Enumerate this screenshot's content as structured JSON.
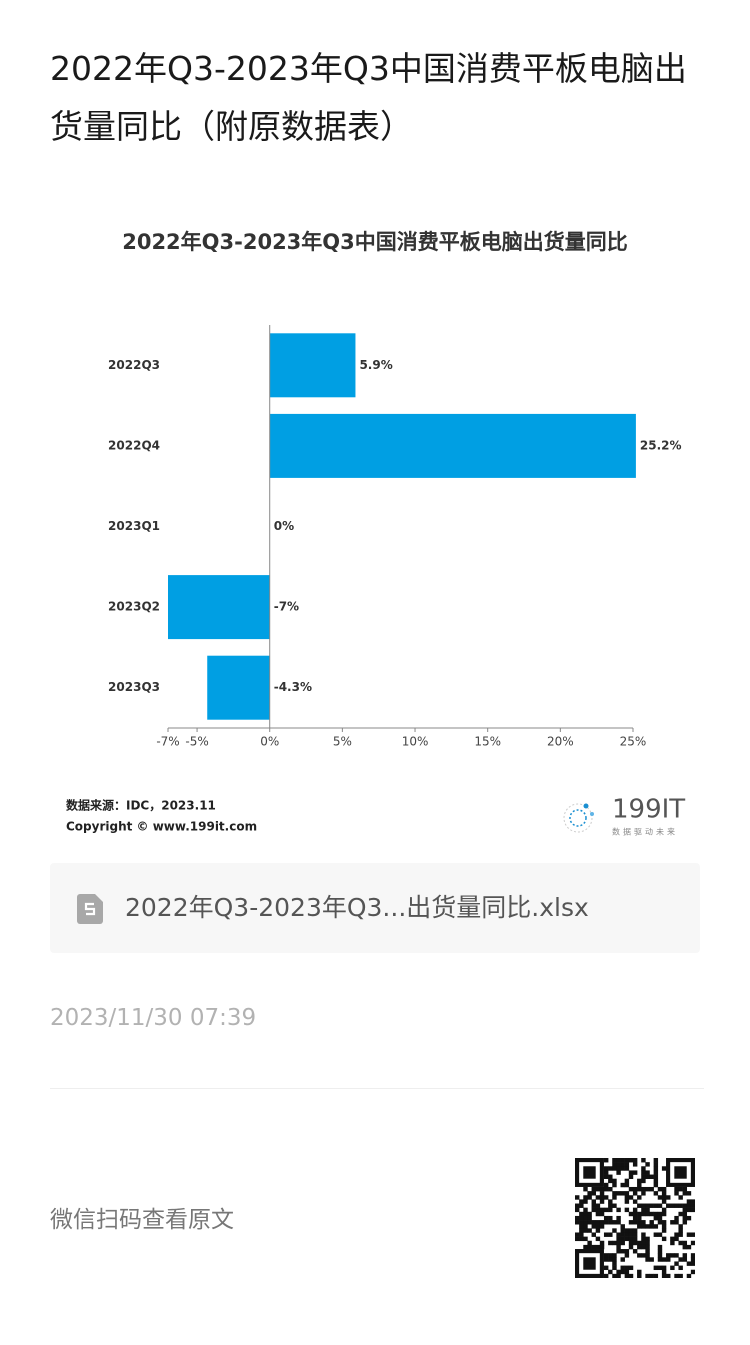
{
  "page_title": "2022年Q3-2023年Q3中国消费平板电脑出货量同比（附原数据表）",
  "chart_data": {
    "type": "hbar",
    "title": "2022年Q3-2023年Q3中国消费平板电脑出货量同比",
    "categories": [
      "2022Q3",
      "2022Q4",
      "2023Q1",
      "2023Q2",
      "2023Q3"
    ],
    "values": [
      5.9,
      25.2,
      0,
      -7,
      -4.3
    ],
    "value_labels": [
      "5.9%",
      "25.2%",
      "0%",
      "-7%",
      "-4.3%"
    ],
    "color": "#009fe3",
    "xlim": [
      -7,
      25
    ],
    "xticks": [
      {
        "value": -7,
        "label": "-7%"
      },
      {
        "value": -5,
        "label": "-5%"
      },
      {
        "value": 0,
        "label": "0%"
      },
      {
        "value": 5,
        "label": "5%"
      },
      {
        "value": 10,
        "label": "10%"
      },
      {
        "value": 15,
        "label": "15%"
      },
      {
        "value": 20,
        "label": "20%"
      },
      {
        "value": 25,
        "label": "25%"
      }
    ],
    "grid": false
  },
  "source": "数据来源：IDC，2023.11",
  "copyright": "Copyright © www.199it.com",
  "logo": {
    "name": "199IT",
    "slogan": "数据驱动未来"
  },
  "attachment": "2022年Q3-2023年Q3...出货量同比.xlsx",
  "date": "2023/11/30 07:39",
  "scan_text": "微信扫码查看原文"
}
